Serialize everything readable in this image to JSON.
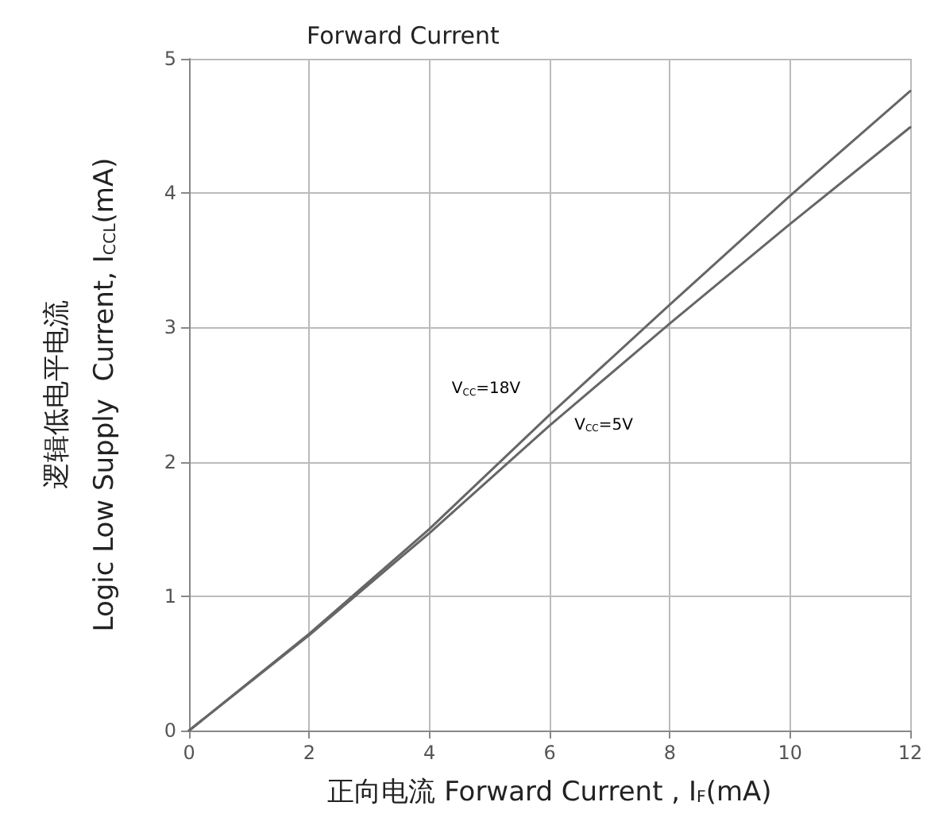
{
  "chart_data": {
    "type": "line",
    "title": "Forward Current",
    "xlabel": "正向电流 Forward Current , I$_{F}$(mA)",
    "ylabel": "逻辑低电平电流\nLogic Low Supply  Current, I$_{CCL}$(mA)",
    "x": [
      0,
      2,
      4,
      6,
      8,
      10,
      12
    ],
    "series": [
      {
        "name": "V$_{CC}$=18V",
        "color": "#666666",
        "values": [
          0,
          0.72,
          1.5,
          2.35,
          3.17,
          3.98,
          4.76
        ]
      },
      {
        "name": "V$_{CC}$=5V",
        "color": "#666666",
        "values": [
          0,
          0.71,
          1.47,
          2.27,
          3.03,
          3.77,
          4.49
        ]
      }
    ],
    "xlim": [
      0,
      12
    ],
    "xticks": [
      0,
      2,
      4,
      6,
      8,
      10,
      12
    ],
    "ylim": [
      0,
      5
    ],
    "yticks": [
      0,
      1,
      2,
      3,
      4,
      5
    ],
    "grid": true,
    "marker": "none",
    "line_style": "solid"
  }
}
